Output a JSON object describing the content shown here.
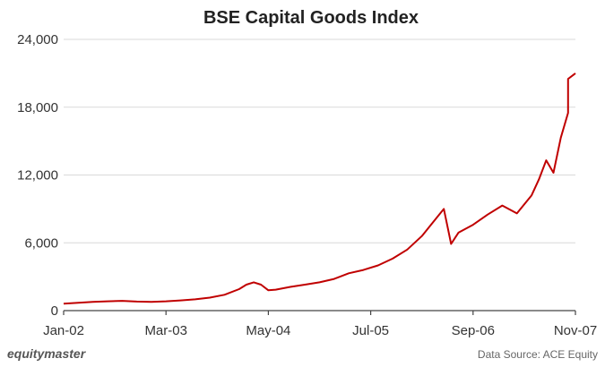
{
  "chart_data": {
    "type": "line",
    "title": "BSE Capital Goods Index",
    "xlabel": "",
    "ylabel": "",
    "x_ticks": [
      "Jan-02",
      "Mar-03",
      "May-04",
      "Jul-05",
      "Sep-06",
      "Nov-07"
    ],
    "y_ticks": [
      "0",
      "6,000",
      "12,000",
      "18,000",
      "24,000"
    ],
    "ylim": [
      0,
      24000
    ],
    "xlim": [
      "2002-01",
      "2007-11"
    ],
    "grid": "horizontal",
    "legend": "none",
    "series": [
      {
        "color": "#c00000",
        "points": [
          [
            "2002-01",
            620
          ],
          [
            "2002-03",
            700
          ],
          [
            "2002-05",
            780
          ],
          [
            "2002-07",
            820
          ],
          [
            "2002-09",
            860
          ],
          [
            "2002-11",
            800
          ],
          [
            "2003-01",
            780
          ],
          [
            "2003-03",
            820
          ],
          [
            "2003-05",
            900
          ],
          [
            "2003-07",
            1000
          ],
          [
            "2003-09",
            1150
          ],
          [
            "2003-11",
            1400
          ],
          [
            "2004-01",
            1900
          ],
          [
            "2004-02",
            2300
          ],
          [
            "2004-03",
            2500
          ],
          [
            "2004-04",
            2300
          ],
          [
            "2004-05",
            1800
          ],
          [
            "2004-06",
            1850
          ],
          [
            "2004-08",
            2100
          ],
          [
            "2004-10",
            2300
          ],
          [
            "2004-12",
            2500
          ],
          [
            "2005-02",
            2800
          ],
          [
            "2005-04",
            3300
          ],
          [
            "2005-06",
            3600
          ],
          [
            "2005-08",
            4000
          ],
          [
            "2005-10",
            4600
          ],
          [
            "2005-12",
            5400
          ],
          [
            "2006-02",
            6600
          ],
          [
            "2006-04",
            8200
          ],
          [
            "2006-05",
            9000
          ],
          [
            "2006-06",
            5900
          ],
          [
            "2006-07",
            6900
          ],
          [
            "2006-09",
            7600
          ],
          [
            "2006-11",
            8500
          ],
          [
            "2007-01",
            9300
          ],
          [
            "2007-03",
            8600
          ],
          [
            "2007-05",
            10200
          ],
          [
            "2007-06",
            11600
          ],
          [
            "2007-07",
            13300
          ],
          [
            "2007-08",
            12200
          ],
          [
            "2007-09",
            15300
          ],
          [
            "2007-10",
            17500
          ],
          [
            "2007-10",
            20500
          ],
          [
            "2007-11",
            21000
          ]
        ]
      }
    ]
  },
  "footer": {
    "brand": "equitymaster",
    "source": "Data Source: ACE Equity"
  }
}
